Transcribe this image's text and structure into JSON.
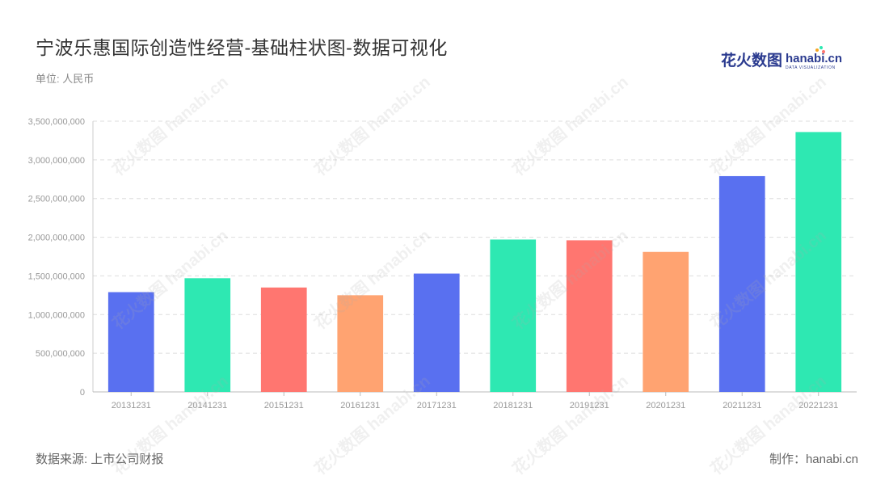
{
  "header": {
    "title": "宁波乐惠国际创造性经营-基础柱状图-数据可视化",
    "unit": "单位: 人民币"
  },
  "logo": {
    "cn": "花火数图",
    "en": "hanabi.cn",
    "sub": "DATA VISUALIZATION"
  },
  "footer": {
    "source": "数据来源: 上市公司财报",
    "maker": "制作：hanabi.cn"
  },
  "chart_data": {
    "type": "bar",
    "title": "宁波乐惠国际创造性经营-基础柱状图-数据可视化",
    "xlabel": "",
    "ylabel": "",
    "ylim": [
      0,
      3500000000
    ],
    "yticks": [
      0,
      500000000,
      1000000000,
      1500000000,
      2000000000,
      2500000000,
      3000000000,
      3500000000
    ],
    "ytick_labels": [
      "0",
      "500,000,000",
      "1,000,000,000",
      "1,500,000,000",
      "2,000,000,000",
      "2,500,000,000",
      "3,000,000,000",
      "3,500,000,000"
    ],
    "grid": true,
    "categories": [
      "20131231",
      "20141231",
      "20151231",
      "20161231",
      "20171231",
      "20181231",
      "20191231",
      "20201231",
      "20211231",
      "20221231"
    ],
    "values": [
      1290000000,
      1470000000,
      1350000000,
      1250000000,
      1530000000,
      1970000000,
      1960000000,
      1810000000,
      2790000000,
      3360000000
    ],
    "colors": [
      "#5970f0",
      "#2ee8b2",
      "#ff7670",
      "#ffa371",
      "#5970f0",
      "#2ee8b2",
      "#ff7670",
      "#ffa371",
      "#5970f0",
      "#2ee8b2"
    ]
  }
}
